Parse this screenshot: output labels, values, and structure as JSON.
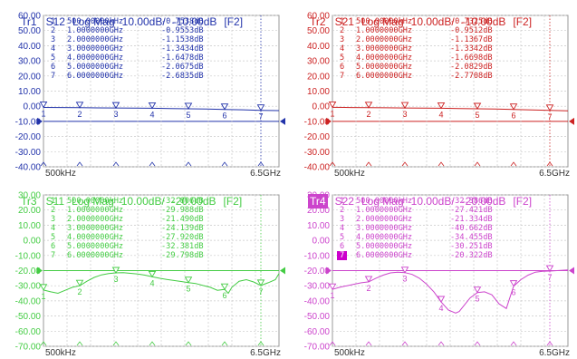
{
  "traces": [
    {
      "id": "tr1",
      "trace_label": "Tr1",
      "param": "S12",
      "format": "Log Mag",
      "scale": "10.00dB/",
      "ref": "-10.00dB",
      "channel": "[F2]",
      "color": "#2233aa",
      "active": false,
      "y_ticks": [
        "60.00",
        "50.00",
        "40.00",
        "30.00",
        "20.00",
        "10.00",
        "0.00",
        "-10.00",
        "-20.00",
        "-30.00",
        "-40.00"
      ],
      "y_top": 60,
      "y_bottom": -40,
      "x_start_label": "500kHz",
      "x_stop_label": "6.5GHz",
      "markers": [
        {
          "num": "1",
          "freq": "500.00000kHz",
          "value": "-0.7538dB"
        },
        {
          "num": "2",
          "freq": "1.0000000GHz",
          "value": "-0.9553dB"
        },
        {
          "num": "3",
          "freq": "2.0000000GHz",
          "value": "-1.1538dB"
        },
        {
          "num": "4",
          "freq": "3.0000000GHz",
          "value": "-1.3434dB"
        },
        {
          "num": "5",
          "freq": "4.0000000GHz",
          "value": "-1.6478dB"
        },
        {
          "num": "6",
          "freq": "5.0000000GHz",
          "value": "-2.0675dB"
        },
        {
          "num": "7",
          "freq": "6.0000000GHz",
          "value": "-2.6835dB"
        }
      ],
      "curve": {
        "x_ghz": [
          0.0005,
          0.5,
          1,
          1.5,
          2,
          2.5,
          3,
          3.5,
          4,
          4.5,
          5,
          5.5,
          6,
          6.5
        ],
        "db": [
          -0.75,
          -0.85,
          -0.96,
          -1.05,
          -1.15,
          -1.25,
          -1.34,
          -1.5,
          -1.65,
          -1.85,
          -2.07,
          -2.35,
          -2.68,
          -2.9
        ]
      }
    },
    {
      "id": "tr2",
      "trace_label": "Tr2",
      "param": "S21",
      "format": "Log Mag",
      "scale": "10.00dB/",
      "ref": "-10.00dB",
      "channel": "[F2]",
      "color": "#cc2222",
      "active": false,
      "y_ticks": [
        "60.00",
        "50.00",
        "40.00",
        "30.00",
        "20.00",
        "10.00",
        "0.00",
        "-10.00",
        "-20.00",
        "-30.00",
        "-40.00"
      ],
      "y_top": 60,
      "y_bottom": -40,
      "x_start_label": "500kHz",
      "x_stop_label": "6.5GHz",
      "markers": [
        {
          "num": "1",
          "freq": "500.00000kHz",
          "value": "-0.7325dB"
        },
        {
          "num": "2",
          "freq": "1.0000000GHz",
          "value": "-0.9512dB"
        },
        {
          "num": "3",
          "freq": "2.0000000GHz",
          "value": "-1.1367dB"
        },
        {
          "num": "4",
          "freq": "3.0000000GHz",
          "value": "-1.3342dB"
        },
        {
          "num": "5",
          "freq": "4.0000000GHz",
          "value": "-1.6698dB"
        },
        {
          "num": "6",
          "freq": "5.0000000GHz",
          "value": "-2.0829dB"
        },
        {
          "num": "7",
          "freq": "6.0000000GHz",
          "value": "-2.7708dB"
        }
      ],
      "curve": {
        "x_ghz": [
          0.0005,
          0.5,
          1,
          1.5,
          2,
          2.5,
          3,
          3.5,
          4,
          4.5,
          5,
          5.5,
          6,
          6.5
        ],
        "db": [
          -0.73,
          -0.84,
          -0.95,
          -1.04,
          -1.14,
          -1.24,
          -1.33,
          -1.5,
          -1.67,
          -1.86,
          -2.08,
          -2.4,
          -2.77,
          -3.0
        ]
      }
    },
    {
      "id": "tr3",
      "trace_label": "Tr3",
      "param": "S11",
      "format": "Log Mag",
      "scale": "10.00dB/",
      "ref": "-20.00dB",
      "channel": "[F2]",
      "color": "#44cc44",
      "active": false,
      "y_ticks": [
        "30.00",
        "20.00",
        "10.00",
        "0.00",
        "-10.00",
        "-20.00",
        "-30.00",
        "-40.00",
        "-50.00",
        "-60.00",
        "-70.00"
      ],
      "y_top": 30,
      "y_bottom": -70,
      "x_start_label": "500kHz",
      "x_stop_label": "6.5GHz",
      "markers": [
        {
          "num": "1",
          "freq": "500.00000kHz",
          "value": "-32.806dB"
        },
        {
          "num": "2",
          "freq": "1.0000000GHz",
          "value": "-29.988dB"
        },
        {
          "num": "3",
          "freq": "2.0000000GHz",
          "value": "-21.490dB"
        },
        {
          "num": "4",
          "freq": "3.0000000GHz",
          "value": "-24.139dB"
        },
        {
          "num": "5",
          "freq": "4.0000000GHz",
          "value": "-27.920dB"
        },
        {
          "num": "6",
          "freq": "5.0000000GHz",
          "value": "-32.381dB"
        },
        {
          "num": "7",
          "freq": "6.0000000GHz",
          "value": "-29.798dB"
        }
      ],
      "curve": {
        "x_ghz": [
          0.0005,
          0.2,
          0.4,
          0.6,
          0.8,
          1,
          1.2,
          1.4,
          1.6,
          1.8,
          2,
          2.2,
          2.4,
          2.6,
          2.8,
          3,
          3.2,
          3.4,
          3.6,
          3.8,
          4,
          4.2,
          4.4,
          4.6,
          4.8,
          5,
          5.1,
          5.2,
          5.4,
          5.6,
          5.8,
          6,
          6.2,
          6.4,
          6.5
        ],
        "db": [
          -32.8,
          -34,
          -35,
          -33,
          -31,
          -30,
          -27,
          -24.5,
          -22.8,
          -22,
          -21.5,
          -21.3,
          -21.8,
          -22.3,
          -23,
          -24.1,
          -25,
          -25.8,
          -26.5,
          -27.2,
          -27.9,
          -28.5,
          -29.8,
          -31,
          -33,
          -32.4,
          -35,
          -31,
          -27,
          -26,
          -27.5,
          -29.8,
          -28,
          -26,
          -22
        ]
      }
    },
    {
      "id": "tr4",
      "trace_label": "Tr4",
      "param": "S22",
      "format": "Log Mag",
      "scale": "10.00dB/",
      "ref": "-20.00dB",
      "channel": "[F2]",
      "color": "#cc44cc",
      "active": true,
      "y_ticks": [
        "30.00",
        "20.00",
        "10.00",
        "0.00",
        "-10.00",
        "-20.00",
        "-30.00",
        "-40.00",
        "-50.00",
        "-60.00",
        "-70.00"
      ],
      "y_top": 30,
      "y_bottom": -70,
      "x_start_label": "500kHz",
      "x_stop_label": "6.5GHz",
      "markers": [
        {
          "num": "1",
          "freq": "500.00000kHz",
          "value": "-32.386dB"
        },
        {
          "num": "2",
          "freq": "1.0000000GHz",
          "value": "-27.421dB"
        },
        {
          "num": "3",
          "freq": "2.0000000GHz",
          "value": "-21.334dB"
        },
        {
          "num": "4",
          "freq": "3.0000000GHz",
          "value": "-40.662dB"
        },
        {
          "num": "5",
          "freq": "4.0000000GHz",
          "value": "-34.455dB"
        },
        {
          "num": "6",
          "freq": "5.0000000GHz",
          "value": "-30.251dB"
        },
        {
          "num": "7",
          "freq": "6.0000000GHz",
          "value": "-20.322dB"
        }
      ],
      "curve": {
        "x_ghz": [
          0.0005,
          0.2,
          0.4,
          0.6,
          0.8,
          1,
          1.2,
          1.4,
          1.6,
          1.8,
          2,
          2.2,
          2.4,
          2.6,
          2.8,
          3,
          3.2,
          3.4,
          3.5,
          3.6,
          3.8,
          4,
          4.2,
          4.4,
          4.6,
          4.8,
          5,
          5.2,
          5.4,
          5.6,
          5.8,
          6,
          6.2,
          6.5
        ],
        "db": [
          -32.4,
          -31,
          -30,
          -29,
          -28,
          -27.4,
          -25,
          -23,
          -21.5,
          -21,
          -21.3,
          -22.5,
          -25,
          -29,
          -34,
          -40.7,
          -46,
          -48,
          -47,
          -44,
          -38,
          -34.5,
          -34,
          -36,
          -42,
          -45,
          -30.3,
          -26,
          -23,
          -21,
          -20.5,
          -20.3,
          -20,
          -19.5
        ]
      }
    }
  ]
}
